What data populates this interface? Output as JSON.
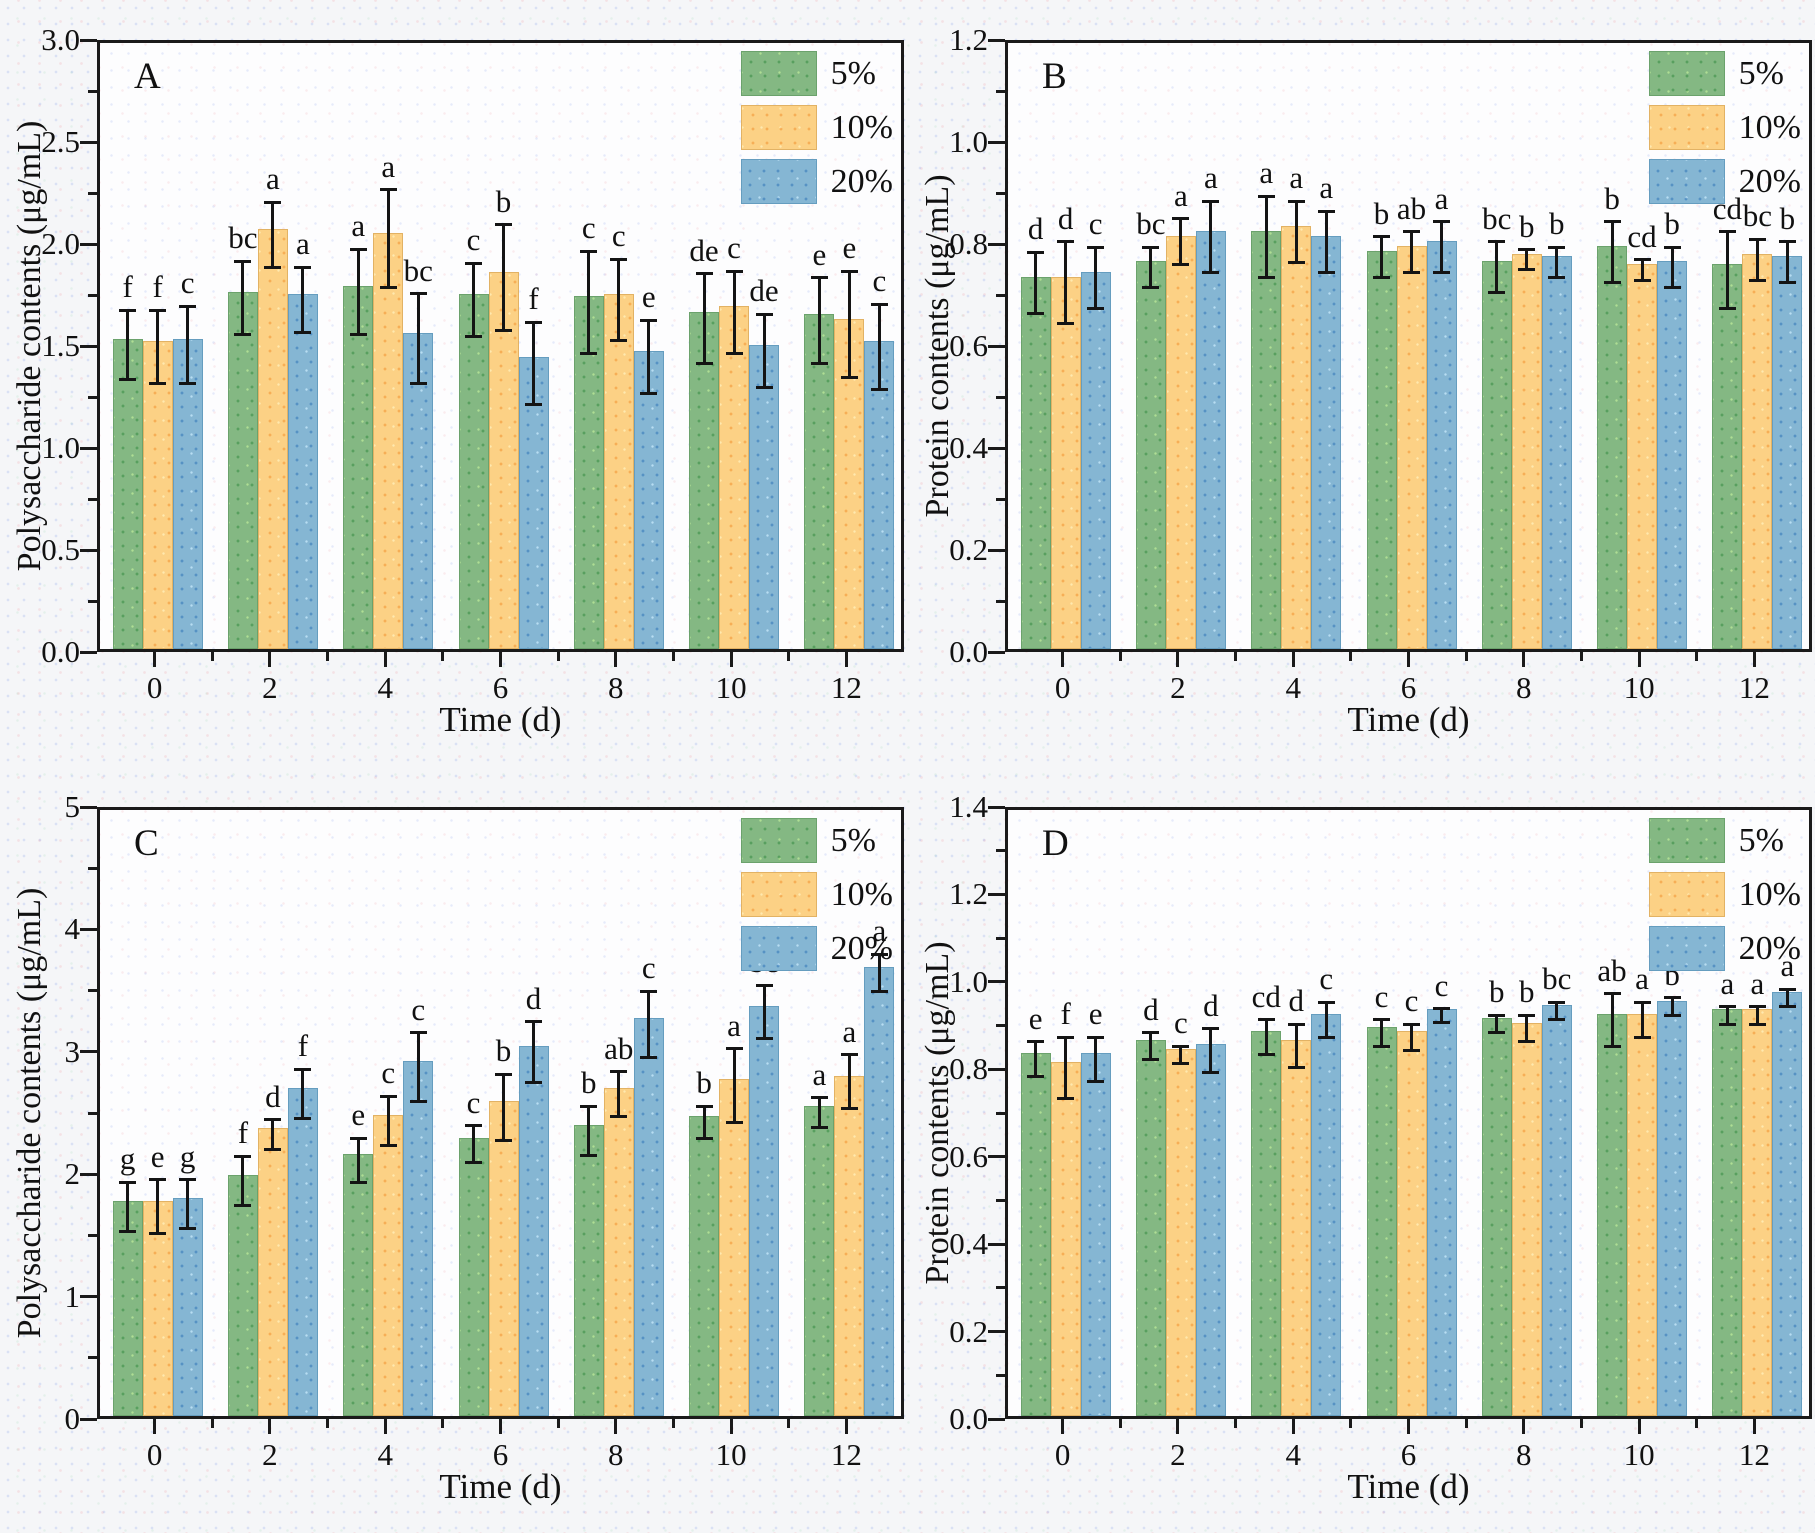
{
  "figure": {
    "xlabel": "Time (d)",
    "legend": {
      "items": [
        {
          "label": "5%",
          "color": "#84b883"
        },
        {
          "label": "10%",
          "color": "#fcd185"
        },
        {
          "label": "20%",
          "color": "#85b6d3"
        }
      ]
    },
    "axis_color": "#1a1a1a",
    "error_bar_color": "#141414"
  },
  "chart_data": [
    {
      "type": "bar",
      "panel_label": "A",
      "ylabel": "Polysaccharide contents (μg/mL)",
      "xlabel": "Time (d)",
      "ylim": [
        0,
        3.0
      ],
      "ytick_step": 0.5,
      "ytick_minor_step": 0.25,
      "ytick_decimals": 1,
      "grid": false,
      "legend_position": "top-right",
      "categories": [
        0,
        2,
        4,
        6,
        8,
        10,
        12
      ],
      "series": [
        {
          "name": "5%",
          "values": [
            1.52,
            1.75,
            1.78,
            1.74,
            1.73,
            1.65,
            1.64
          ],
          "errors": [
            0.17,
            0.18,
            0.21,
            0.18,
            0.25,
            0.22,
            0.21
          ],
          "letters": [
            "f",
            "bc",
            "a",
            "c",
            "c",
            "de",
            "e"
          ]
        },
        {
          "name": "10%",
          "values": [
            1.51,
            2.06,
            2.04,
            1.85,
            1.74,
            1.68,
            1.62
          ],
          "errors": [
            0.18,
            0.16,
            0.24,
            0.26,
            0.2,
            0.2,
            0.26
          ],
          "letters": [
            "f",
            "a",
            "a",
            "b",
            "c",
            "c",
            "e"
          ]
        },
        {
          "name": "20%",
          "values": [
            1.52,
            1.74,
            1.55,
            1.43,
            1.46,
            1.49,
            1.51
          ],
          "errors": [
            0.19,
            0.16,
            0.22,
            0.2,
            0.18,
            0.18,
            0.21
          ],
          "letters": [
            "c",
            "a",
            "bc",
            "f",
            "e",
            "de",
            "c"
          ]
        }
      ]
    },
    {
      "type": "bar",
      "panel_label": "B",
      "ylabel": "Protein contents (μg/mL)",
      "xlabel": "Time (d)",
      "ylim": [
        0,
        1.2
      ],
      "ytick_step": 0.2,
      "ytick_minor_step": 0.1,
      "ytick_decimals": 1,
      "grid": false,
      "legend_position": "top-right",
      "categories": [
        0,
        2,
        4,
        6,
        8,
        10,
        12
      ],
      "series": [
        {
          "name": "5%",
          "values": [
            0.73,
            0.76,
            0.82,
            0.78,
            0.76,
            0.79,
            0.755
          ],
          "errors": [
            0.06,
            0.04,
            0.08,
            0.04,
            0.05,
            0.06,
            0.075
          ],
          "letters": [
            "d",
            "bc",
            "a",
            "b",
            "bc",
            "b",
            "cd"
          ]
        },
        {
          "name": "10%",
          "values": [
            0.73,
            0.81,
            0.83,
            0.79,
            0.775,
            0.755,
            0.775
          ],
          "errors": [
            0.08,
            0.045,
            0.06,
            0.04,
            0.02,
            0.02,
            0.04
          ],
          "letters": [
            "d",
            "a",
            "a",
            "ab",
            "b",
            "cd",
            "bc"
          ]
        },
        {
          "name": "20%",
          "values": [
            0.74,
            0.82,
            0.81,
            0.8,
            0.77,
            0.76,
            0.77
          ],
          "errors": [
            0.06,
            0.07,
            0.06,
            0.05,
            0.03,
            0.04,
            0.04
          ],
          "letters": [
            "c",
            "a",
            "a",
            "a",
            "b",
            "b",
            "b"
          ]
        }
      ]
    },
    {
      "type": "bar",
      "panel_label": "C",
      "ylabel": "Polysaccharide contents (μg/mL)",
      "xlabel": "Time (d)",
      "ylim": [
        0,
        5
      ],
      "ytick_step": 1,
      "ytick_minor_step": 0.5,
      "ytick_decimals": 0,
      "grid": false,
      "legend_position": "top-right",
      "categories": [
        0,
        2,
        4,
        6,
        8,
        10,
        12
      ],
      "series": [
        {
          "name": "5%",
          "values": [
            1.76,
            1.97,
            2.14,
            2.27,
            2.38,
            2.45,
            2.53
          ],
          "errors": [
            0.2,
            0.2,
            0.18,
            0.15,
            0.2,
            0.13,
            0.12
          ],
          "letters": [
            "g",
            "f",
            "e",
            "c",
            "b",
            "b",
            "a"
          ]
        },
        {
          "name": "10%",
          "values": [
            1.76,
            2.35,
            2.46,
            2.57,
            2.68,
            2.75,
            2.78
          ],
          "errors": [
            0.22,
            0.12,
            0.2,
            0.27,
            0.18,
            0.3,
            0.22
          ],
          "letters": [
            "e",
            "d",
            "c",
            "b",
            "ab",
            "a",
            "a"
          ]
        },
        {
          "name": "20%",
          "values": [
            1.78,
            2.68,
            2.9,
            3.02,
            3.25,
            3.35,
            3.67
          ],
          "errors": [
            0.2,
            0.2,
            0.28,
            0.25,
            0.27,
            0.22,
            0.15
          ],
          "letters": [
            "g",
            "f",
            "c",
            "d",
            "c",
            "bc",
            "a"
          ]
        }
      ]
    },
    {
      "type": "bar",
      "panel_label": "D",
      "ylabel": "Protein contents (μg/mL)",
      "xlabel": "Time (d)",
      "ylim": [
        0,
        1.4
      ],
      "ytick_step": 0.2,
      "ytick_minor_step": 0.1,
      "ytick_decimals": 1,
      "grid": false,
      "legend_position": "top-right",
      "categories": [
        0,
        2,
        4,
        6,
        8,
        10,
        12
      ],
      "series": [
        {
          "name": "5%",
          "values": [
            0.83,
            0.86,
            0.88,
            0.89,
            0.91,
            0.92,
            0.93
          ],
          "errors": [
            0.04,
            0.03,
            0.04,
            0.03,
            0.02,
            0.06,
            0.02
          ],
          "letters": [
            "e",
            "d",
            "cd",
            "c",
            "b",
            "ab",
            "a"
          ]
        },
        {
          "name": "10%",
          "values": [
            0.81,
            0.84,
            0.86,
            0.88,
            0.9,
            0.92,
            0.93
          ],
          "errors": [
            0.07,
            0.02,
            0.05,
            0.03,
            0.03,
            0.04,
            0.02
          ],
          "letters": [
            "f",
            "c",
            "d",
            "c",
            "b",
            "a",
            "a"
          ]
        },
        {
          "name": "20%",
          "values": [
            0.83,
            0.85,
            0.92,
            0.93,
            0.94,
            0.95,
            0.97
          ],
          "errors": [
            0.05,
            0.05,
            0.04,
            0.015,
            0.02,
            0.02,
            0.02
          ],
          "letters": [
            "e",
            "d",
            "c",
            "c",
            "bc",
            "b",
            "a"
          ]
        }
      ]
    }
  ]
}
